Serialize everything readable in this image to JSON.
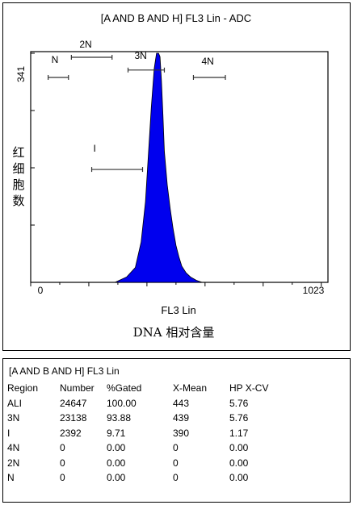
{
  "chart_data": {
    "type": "histogram",
    "title": "[A AND B AND H] FL3 Lin - ADC",
    "xlabel": "FL3 Lin",
    "xlabel_cn": "DNA 相对含量",
    "ylabel": "红细胞数",
    "xlim": [
      0,
      1023
    ],
    "ylim": [
      0,
      341
    ],
    "x_tick_labels": [
      "0",
      "1023"
    ],
    "y_tick_labels": [
      "341"
    ],
    "fill_color": "#0000ee",
    "peak": {
      "x": [
        290,
        330,
        360,
        380,
        395,
        405,
        415,
        425,
        433,
        440,
        445,
        450,
        455,
        460,
        470,
        480,
        490,
        500,
        510,
        520,
        535,
        550,
        570,
        590
      ],
      "y": [
        0,
        8,
        22,
        60,
        120,
        190,
        260,
        318,
        341,
        341,
        336,
        300,
        250,
        195,
        145,
        110,
        80,
        55,
        38,
        24,
        14,
        8,
        3,
        0
      ]
    },
    "regions": [
      {
        "name": "N",
        "x_start": 60,
        "x_end": 130,
        "y": 305
      },
      {
        "name": "2N",
        "x_start": 140,
        "x_end": 280,
        "y": 335
      },
      {
        "name": "3N",
        "x_start": 335,
        "x_end": 460,
        "y": 316
      },
      {
        "name": "4N",
        "x_start": 560,
        "x_end": 670,
        "y": 305
      },
      {
        "name": "I",
        "x_start": 210,
        "x_end": 385,
        "y": 168
      }
    ]
  },
  "stats": {
    "title": "[A AND B AND H] FL3 Lin",
    "headers": [
      "Region",
      "Number",
      "%Gated",
      "X-Mean",
      "HP X-CV"
    ],
    "rows": [
      [
        "ALI",
        "24647",
        "100.00",
        "443",
        "5.76"
      ],
      [
        "3N",
        "23138",
        "93.88",
        "439",
        "5.76"
      ],
      [
        "I",
        "2392",
        "9.71",
        "390",
        "1.17"
      ],
      [
        "4N",
        "0",
        "0.00",
        "0",
        "0.00"
      ],
      [
        "2N",
        "0",
        "0.00",
        "0",
        "0.00"
      ],
      [
        "N",
        "0",
        "0.00",
        "0",
        "0.00"
      ]
    ]
  }
}
